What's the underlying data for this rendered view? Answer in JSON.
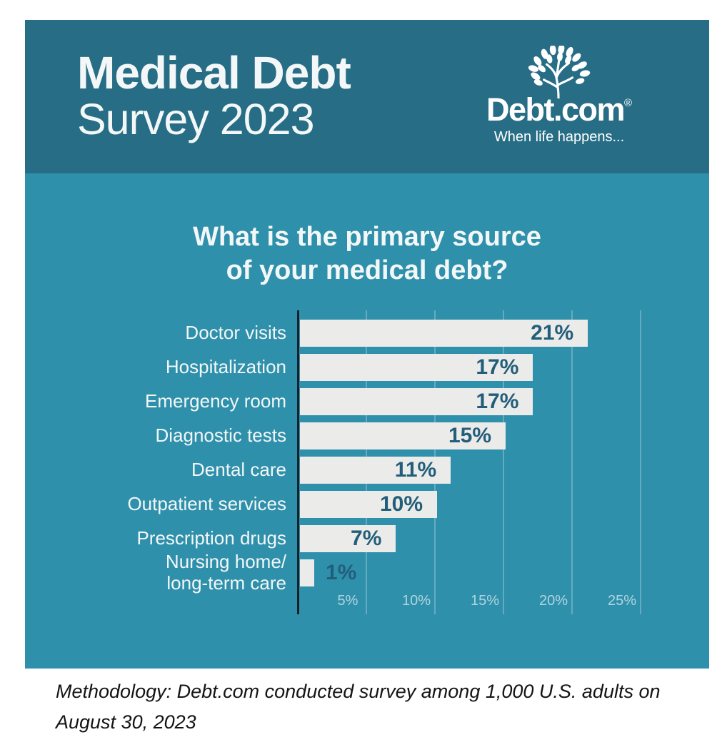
{
  "colors": {
    "header_bg": "#266d85",
    "body_bg": "#2f90ab",
    "bar": "#ebebe9",
    "value_label": "#225e7a",
    "axis": "#0e2029",
    "gridline": "rgba(255,255,255,0.25)",
    "tick_label": "rgba(255,255,255,0.62)",
    "text_light": "#f3f7f7",
    "footer_text": "#141414"
  },
  "header": {
    "title_line1": "Medical Debt",
    "title_line2": "Survey 2023",
    "logo": {
      "text": "Debt.com",
      "registered_mark": "®",
      "tagline": "When life happens...",
      "icon": "tree-icon"
    }
  },
  "chart_data": {
    "type": "bar",
    "orientation": "horizontal",
    "title": "What is the primary source of your medical debt?",
    "title_lines": [
      "What is the primary source",
      "of your medical debt?"
    ],
    "categories": [
      "Doctor visits",
      "Hospitalization",
      "Emergency room",
      "Diagnostic tests",
      "Dental care",
      "Outpatient services",
      "Prescription drugs",
      "Nursing home/\nlong-term care"
    ],
    "values": [
      21,
      17,
      17,
      15,
      11,
      10,
      7,
      1
    ],
    "value_labels": [
      "21%",
      "17%",
      "17%",
      "15%",
      "11%",
      "10%",
      "7%",
      "1%"
    ],
    "x_ticks": [
      "5%",
      "10%",
      "15%",
      "20%",
      "25%"
    ],
    "x_tick_values": [
      5,
      10,
      15,
      20,
      25
    ],
    "xlim": [
      0,
      26
    ],
    "xlabel": "",
    "ylabel": "",
    "grid": true,
    "legend": false
  },
  "footer": {
    "methodology_lines": [
      "Methodology: Debt.com conducted survey among 1,000 U.S. adults on",
      "August 30, 2023"
    ],
    "methodology_full": "Methodology: Debt.com conducted survey among 1,000 U.S. adults on August 30, 2023"
  }
}
